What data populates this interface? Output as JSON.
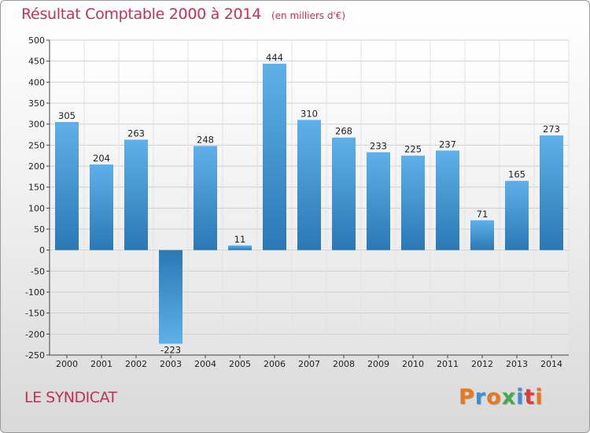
{
  "header": {
    "title": "Résultat Comptable 2000 à 2014",
    "subtitle": "(en milliers d'€)"
  },
  "footer": {
    "commune": "LE SYNDICAT",
    "logo": "Proxiti"
  },
  "colors": {
    "title": "#c3315a",
    "bar_light": "#5fb0ea",
    "bar_dark": "#2a78b5",
    "logo_letters": [
      "#e8781e",
      "#3f8fd0",
      "#e8781e",
      "#3fae49",
      "#3f8fd0",
      "#e53935",
      "#e8781e"
    ]
  },
  "chart_data": {
    "type": "bar",
    "categories": [
      "2000",
      "2001",
      "2002",
      "2003",
      "2004",
      "2005",
      "2006",
      "2007",
      "2008",
      "2009",
      "2010",
      "2011",
      "2012",
      "2013",
      "2014"
    ],
    "values": [
      305,
      204,
      263,
      -223,
      248,
      11,
      444,
      310,
      268,
      233,
      225,
      237,
      71,
      165,
      273
    ],
    "data_labels": [
      "305",
      "204",
      "263",
      "-223",
      "248",
      "11",
      "444",
      "310",
      "268",
      "233",
      "225",
      "237",
      "71",
      "165",
      "273"
    ],
    "ylim": [
      -250,
      500
    ],
    "yticks": [
      500,
      450,
      400,
      350,
      300,
      250,
      200,
      150,
      100,
      50,
      0,
      -50,
      -100,
      -150,
      -200,
      -250
    ],
    "ytick_labels": [
      "500",
      "450",
      "400",
      "350",
      "300",
      "250",
      "200",
      "150",
      "100",
      "50",
      "0",
      "-50",
      "-100",
      "-150",
      "-200",
      "-250"
    ],
    "grid": true,
    "legend": "none"
  }
}
